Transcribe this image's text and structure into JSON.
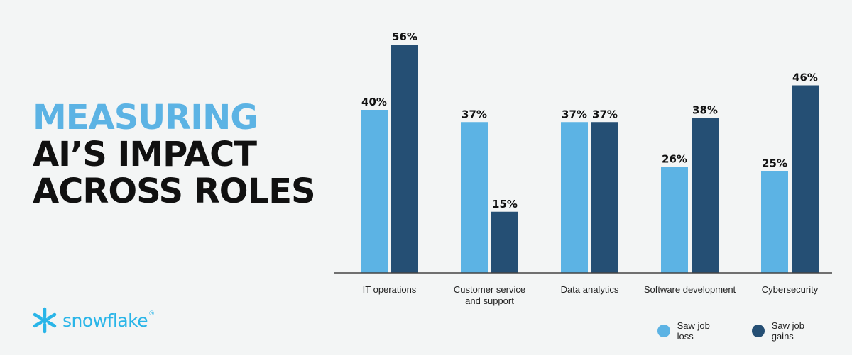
{
  "title": {
    "line1": "MEASURING",
    "line2": "AI’S IMPACT",
    "line3": "ACROSS ROLES"
  },
  "brand": {
    "name": "snowflake",
    "mark": "®"
  },
  "colors": {
    "title_accent": "#5cb3e4",
    "title_dark": "#111111",
    "loss": "#5cb3e4",
    "gains": "#254f74",
    "logo": "#29b5e8"
  },
  "chart_data": {
    "type": "bar",
    "title": "",
    "xlabel": "",
    "ylabel": "",
    "ylim": [
      0,
      60
    ],
    "grid": false,
    "legend": "bottom-right",
    "categories": [
      [
        "IT operations"
      ],
      [
        "Customer service",
        "and support"
      ],
      [
        "Data analytics"
      ],
      [
        "Software development"
      ],
      [
        "Cybersecurity"
      ]
    ],
    "series": [
      {
        "name": "Saw job loss",
        "values": [
          40,
          37,
          37,
          26,
          25
        ],
        "labels": [
          "40%",
          "37%",
          "37%",
          "26%",
          "25%"
        ]
      },
      {
        "name": "Saw job gains",
        "values": [
          56,
          15,
          37,
          38,
          46
        ],
        "labels": [
          "56%",
          "15%",
          "37%",
          "38%",
          "46%"
        ]
      }
    ]
  }
}
